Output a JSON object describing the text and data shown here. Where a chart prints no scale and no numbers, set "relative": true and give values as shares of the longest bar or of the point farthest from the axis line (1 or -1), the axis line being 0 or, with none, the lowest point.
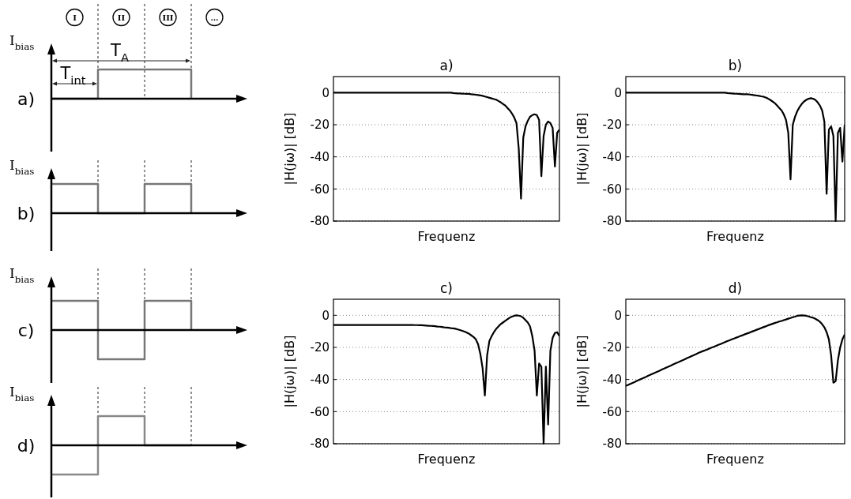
{
  "chart_data": [
    {
      "type": "step",
      "relative": true,
      "title": "a)",
      "ylabel": "I$_{bias}$",
      "categories": [
        null,
        null,
        null,
        null
      ],
      "values": [
        0,
        1,
        1,
        0
      ],
      "color": "#777777",
      "grid": "x",
      "tick_labels": false,
      "annotations": [
        "I",
        "II",
        "III",
        "…",
        "T$_{A}$",
        "T$_{int}$"
      ]
    },
    {
      "type": "step",
      "relative": true,
      "title": "b)",
      "ylabel": "I$_{bias}$",
      "categories": [
        null,
        null,
        null,
        null
      ],
      "values": [
        1,
        0,
        1,
        0
      ],
      "color": "#777777",
      "grid": "x",
      "tick_labels": false
    },
    {
      "type": "step",
      "relative": true,
      "title": "c)",
      "ylabel": "I$_{bias}$",
      "categories": [
        null,
        null,
        null,
        null
      ],
      "values": [
        1,
        -1,
        1,
        0
      ],
      "color": "#777777",
      "grid": "x",
      "tick_labels": false
    },
    {
      "type": "step",
      "relative": true,
      "title": "d)",
      "ylabel": "I$_{bias}$",
      "categories": [
        null,
        null,
        null,
        null
      ],
      "values": [
        -1,
        1,
        0,
        0
      ],
      "color": "#888888",
      "grid": "x",
      "tick_labels": false
    },
    {
      "type": "line",
      "title": "a)",
      "xlabel": "Frequenz",
      "ylabel": "|H(jω)| [dB]",
      "color": "#000000",
      "ylim": [
        -80,
        10
      ],
      "yticks": [
        0,
        -20,
        -40,
        -60,
        -80
      ],
      "grid": "y",
      "tick_labels": "y",
      "categories": [
        null,
        null,
        null,
        null,
        null,
        null,
        null,
        null,
        null,
        null,
        null,
        null,
        null,
        null,
        null,
        null,
        null,
        null,
        null,
        null,
        null,
        null,
        null,
        null,
        null,
        null,
        null,
        null,
        null,
        null,
        null,
        null,
        null,
        null,
        null,
        null,
        null,
        null,
        null,
        null,
        null,
        null,
        null,
        null,
        null,
        null,
        null,
        null,
        null,
        null,
        null,
        null,
        null,
        null,
        null,
        null,
        null,
        null,
        null,
        null,
        null,
        null,
        null,
        null,
        null,
        null,
        null,
        null,
        null,
        null,
        null,
        null,
        null,
        null,
        null,
        null,
        null,
        null,
        null,
        null,
        null,
        null,
        null,
        null,
        null,
        null,
        null,
        null,
        null,
        null,
        null,
        null,
        null,
        null,
        null,
        null,
        null,
        null,
        null,
        null,
        null
      ],
      "values": [
        0,
        0,
        0,
        0,
        0,
        0,
        0,
        0,
        0,
        0,
        0,
        0,
        0,
        0,
        0,
        0,
        0,
        0,
        0,
        0,
        0,
        0,
        0,
        0,
        0,
        0,
        0,
        0,
        0,
        0,
        0,
        0,
        0,
        0,
        0,
        0,
        0,
        0,
        0,
        0,
        0,
        0,
        0,
        0,
        0,
        0,
        0,
        0,
        0,
        0,
        0,
        0,
        0,
        -0.3,
        -0.4,
        -0.5,
        -0.5,
        -0.6,
        -0.7,
        -0.8,
        -0.8,
        -1,
        -1.1,
        -1.3,
        -1.5,
        -1.7,
        -2,
        -2.4,
        -2.8,
        -3.2,
        -3.6,
        -4,
        -4.4,
        -5.2,
        -6,
        -7,
        -8,
        -9.5,
        -11,
        -13,
        -15.5,
        -19,
        -35,
        -66,
        -28,
        -21,
        -17.5,
        -15,
        -14,
        -13.5,
        -14,
        -17,
        -52,
        -27,
        -20,
        -18,
        -19,
        -22,
        -46,
        -25,
        -23
      ]
    },
    {
      "type": "line",
      "title": "b)",
      "xlabel": "Frequenz",
      "ylabel": "|H(jω)| [dB]",
      "color": "#000000",
      "ylim": [
        -80,
        10
      ],
      "yticks": [
        0,
        -20,
        -40,
        -60,
        -80
      ],
      "grid": "y",
      "tick_labels": "y",
      "categories": [
        null,
        null,
        null,
        null,
        null,
        null,
        null,
        null,
        null,
        null,
        null,
        null,
        null,
        null,
        null,
        null,
        null,
        null,
        null,
        null,
        null,
        null,
        null,
        null,
        null,
        null,
        null,
        null,
        null,
        null,
        null,
        null,
        null,
        null,
        null,
        null,
        null,
        null,
        null,
        null,
        null,
        null,
        null,
        null,
        null,
        null,
        null,
        null,
        null,
        null,
        null,
        null,
        null,
        null,
        null,
        null,
        null,
        null,
        null,
        null,
        null,
        null,
        null,
        null,
        null,
        null,
        null,
        null,
        null,
        null,
        null,
        null,
        null,
        null,
        null,
        null,
        null,
        null,
        null,
        null,
        null,
        null,
        null,
        null,
        null,
        null,
        null,
        null,
        null,
        null,
        null,
        null,
        null,
        null,
        null,
        null,
        null,
        null
      ],
      "values": [
        0,
        0,
        0,
        0,
        0,
        0,
        0,
        0,
        0,
        0,
        0,
        0,
        0,
        0,
        0,
        0,
        0,
        0,
        0,
        0,
        0,
        0,
        0,
        0,
        0,
        0,
        0,
        0,
        0,
        0,
        0,
        0,
        0,
        0,
        0,
        0,
        0,
        0,
        0,
        0,
        0,
        0,
        0,
        0,
        0,
        -0.3,
        -0.4,
        -0.5,
        -0.6,
        -0.7,
        -0.8,
        -0.9,
        -1,
        -1,
        -1,
        -1.2,
        -1.4,
        -1.6,
        -1.8,
        -2,
        -2.3,
        -2.5,
        -3,
        -3.7,
        -4.5,
        -5.5,
        -6.5,
        -8,
        -9.5,
        -11,
        -13.5,
        -17,
        -25,
        -54,
        -20,
        -15,
        -11.5,
        -9,
        -7,
        -5.5,
        -4.5,
        -3.8,
        -3.5,
        -3.8,
        -4.5,
        -6,
        -8,
        -11,
        -18,
        -63,
        -23,
        -21,
        -27,
        -80,
        -25,
        -22,
        -43,
        -20
      ]
    },
    {
      "type": "line",
      "title": "c)",
      "xlabel": "Frequenz",
      "ylabel": "|H(jω)| [dB]",
      "color": "#000000",
      "ylim": [
        -80,
        10
      ],
      "yticks": [
        0,
        -20,
        -40,
        -60,
        -80
      ],
      "grid": "y",
      "tick_labels": "y",
      "categories": [
        null,
        null,
        null,
        null,
        null,
        null,
        null,
        null,
        null,
        null,
        null,
        null,
        null,
        null,
        null,
        null,
        null,
        null,
        null,
        null,
        null,
        null,
        null,
        null,
        null,
        null,
        null,
        null,
        null,
        null,
        null,
        null,
        null,
        null,
        null,
        null,
        null,
        null,
        null,
        null,
        null,
        null,
        null,
        null,
        null,
        null,
        null,
        null,
        null,
        null,
        null,
        null,
        null,
        null,
        null,
        null,
        null,
        null,
        null,
        null,
        null,
        null,
        null,
        null,
        null,
        null,
        null,
        null,
        null,
        null,
        null,
        null,
        null,
        null,
        null,
        null,
        null,
        null,
        null,
        null,
        null,
        null,
        null,
        null,
        null,
        null,
        null,
        null,
        null,
        null,
        null,
        null,
        null,
        null,
        null,
        null,
        null,
        null,
        null,
        null,
        null
      ],
      "values": [
        -6,
        -6,
        -6,
        -6,
        -6,
        -6,
        -6,
        -6,
        -6,
        -6,
        -6,
        -6,
        -6,
        -6,
        -6,
        -6,
        -6,
        -6,
        -6,
        -6,
        -6,
        -6,
        -6,
        -6,
        -6,
        -6,
        -6,
        -6,
        -6,
        -6,
        -6,
        -6,
        -6,
        -6,
        -6,
        -6,
        -6.1,
        -6.1,
        -6.2,
        -6.2,
        -6.3,
        -6.4,
        -6.5,
        -6.6,
        -6.7,
        -6.8,
        -7,
        -7.1,
        -7.3,
        -7.5,
        -7.6,
        -7.8,
        -8,
        -8.1,
        -8.4,
        -8.8,
        -9.2,
        -9.7,
        -10.2,
        -10.8,
        -11.5,
        -12.5,
        -13.5,
        -15,
        -18,
        -24,
        -33,
        -50,
        -25,
        -16,
        -13,
        -10.5,
        -8.5,
        -7,
        -5.5,
        -4.5,
        -3.5,
        -2.5,
        -1.5,
        -0.8,
        -0.3,
        0,
        -0.2,
        -0.6,
        -1.5,
        -3,
        -4.5,
        -7,
        -13,
        -22,
        -50,
        -30,
        -32,
        -80,
        -32,
        -68,
        -22,
        -14,
        -11,
        -10.5,
        -13
      ]
    },
    {
      "type": "line",
      "title": "d)",
      "xlabel": "Frequenz",
      "ylabel": "|H(jω)| [dB]",
      "color": "#000000",
      "ylim": [
        -80,
        10
      ],
      "yticks": [
        0,
        -20,
        -40,
        -60,
        -80
      ],
      "grid": "y",
      "tick_labels": "y",
      "categories": [
        null,
        null,
        null,
        null,
        null,
        null,
        null,
        null,
        null,
        null,
        null,
        null,
        null,
        null,
        null,
        null,
        null,
        null,
        null,
        null,
        null,
        null,
        null,
        null,
        null,
        null,
        null,
        null,
        null,
        null,
        null,
        null,
        null,
        null,
        null,
        null,
        null,
        null,
        null,
        null,
        null,
        null,
        null,
        null,
        null,
        null,
        null,
        null,
        null,
        null,
        null,
        null,
        null,
        null,
        null,
        null,
        null,
        null,
        null,
        null,
        null,
        null,
        null,
        null,
        null,
        null,
        null,
        null,
        null,
        null,
        null,
        null,
        null,
        null,
        null,
        null,
        null,
        null,
        null,
        null,
        null,
        null,
        null,
        null,
        null,
        null,
        null,
        null,
        null,
        null,
        null,
        null,
        null,
        null,
        null,
        null,
        null,
        null
      ],
      "values": [
        -44,
        -43.4,
        -42.7,
        -42.1,
        -41.5,
        -40.8,
        -40.2,
        -39.5,
        -38.9,
        -38.3,
        -37.6,
        -37,
        -36.4,
        -35.7,
        -35.1,
        -34.5,
        -33.8,
        -33.2,
        -32.5,
        -31.9,
        -31.3,
        -30.6,
        -30,
        -29.4,
        -28.7,
        -28.1,
        -27.5,
        -26.8,
        -26.2,
        -25.5,
        -24.9,
        -24.3,
        -23.6,
        -23,
        -22.4,
        -21.9,
        -21.3,
        -20.7,
        -20.1,
        -19.6,
        -19,
        -18.4,
        -17.9,
        -17.3,
        -16.7,
        -16.1,
        -15.6,
        -15,
        -14.5,
        -13.9,
        -13.4,
        -12.8,
        -12.3,
        -11.7,
        -11.2,
        -10.7,
        -10.1,
        -9.6,
        -9,
        -8.5,
        -7.9,
        -7.4,
        -6.9,
        -6.3,
        -5.8,
        -5.3,
        -4.8,
        -4.4,
        -3.9,
        -3.5,
        -3,
        -2.6,
        -2.1,
        -1.7,
        -1.2,
        -0.8,
        -0.3,
        -0.1,
        0,
        -0.1,
        -0.3,
        -0.7,
        -1.2,
        -1.5,
        -2.2,
        -3,
        -4,
        -5.5,
        -7.5,
        -10.5,
        -15,
        -25,
        -42,
        -41,
        -28,
        -20,
        -15,
        -12
      ]
    }
  ]
}
